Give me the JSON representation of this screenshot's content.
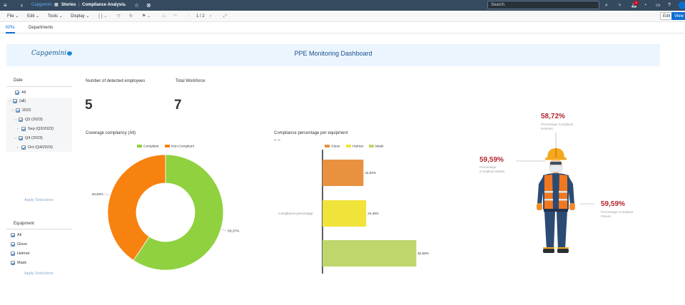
{
  "shell": {
    "menu_icon": "hamburger-menu-icon",
    "back_icon": "back-arrow-icon",
    "home_link": "Capgemini",
    "stories_label": "Stories",
    "story_name": "Compliance Analysis",
    "search_placeholder": "Search",
    "notification_count": "3"
  },
  "toolbar": {
    "file": "File",
    "edit": "Edit",
    "tools": "Tools",
    "display": "Display",
    "page_indicator": "1 / 2",
    "edit_mode": "Edit",
    "view_mode": "View"
  },
  "page_tabs": [
    "KPIs",
    "Departments"
  ],
  "banner": {
    "logo": "Capgemini",
    "title": "PPE Monitoring Dashboard"
  },
  "date_filter": {
    "title": "Date",
    "items": [
      "All",
      "(all)",
      "2023",
      "Q3 (2023)",
      "Sep (Q3/2023)",
      "Q4 (2023)",
      "Oct (Q4/2023)"
    ],
    "apply_label": "Apply Selections"
  },
  "equipment_filter": {
    "title": "Equipment",
    "items": [
      "All",
      "Glove",
      "Helmet",
      "Mask"
    ],
    "apply_label": "Apply Selections"
  },
  "kpis": {
    "detected_label": "Number of detected employees",
    "detected_value": "5",
    "workforce_label": "Total Workforce",
    "workforce_value": "7"
  },
  "chart_data": [
    {
      "type": "pie",
      "title": "Coverage compliancy (All)",
      "categories": [
        "Compliant",
        "Non-Compliant"
      ],
      "values": [
        59.37,
        40.63
      ],
      "labels": [
        "59,37%",
        "40,63%"
      ],
      "colors": [
        "#8fd13f",
        "#f7820f"
      ],
      "legend": "top"
    },
    {
      "type": "bar",
      "title": "Compliance percentage per equipment",
      "subtitle": "in %",
      "category_label": "Compliance percentage",
      "series": [
        {
          "name": "Glove",
          "values": [
            22.94
          ],
          "label": "22,94%",
          "color": "#e8913f"
        },
        {
          "name": "Helmet",
          "values": [
            24.48
          ],
          "label": "24,48%",
          "color": "#f0e33a"
        },
        {
          "name": "Mask",
          "values": [
            52.58
          ],
          "label": "52,58%",
          "color": "#bed66b"
        }
      ],
      "xlim": [
        0,
        55
      ],
      "legend": "top"
    }
  ],
  "worker": {
    "helmets_pct": "58,72%",
    "helmets_label": "Percentage Compliant Helmets",
    "masks_pct": "59,59%",
    "masks_label": "Percentage Compliant Masks",
    "gloves_pct": "59,59%",
    "gloves_label": "Percentage Compliant Gloves"
  }
}
